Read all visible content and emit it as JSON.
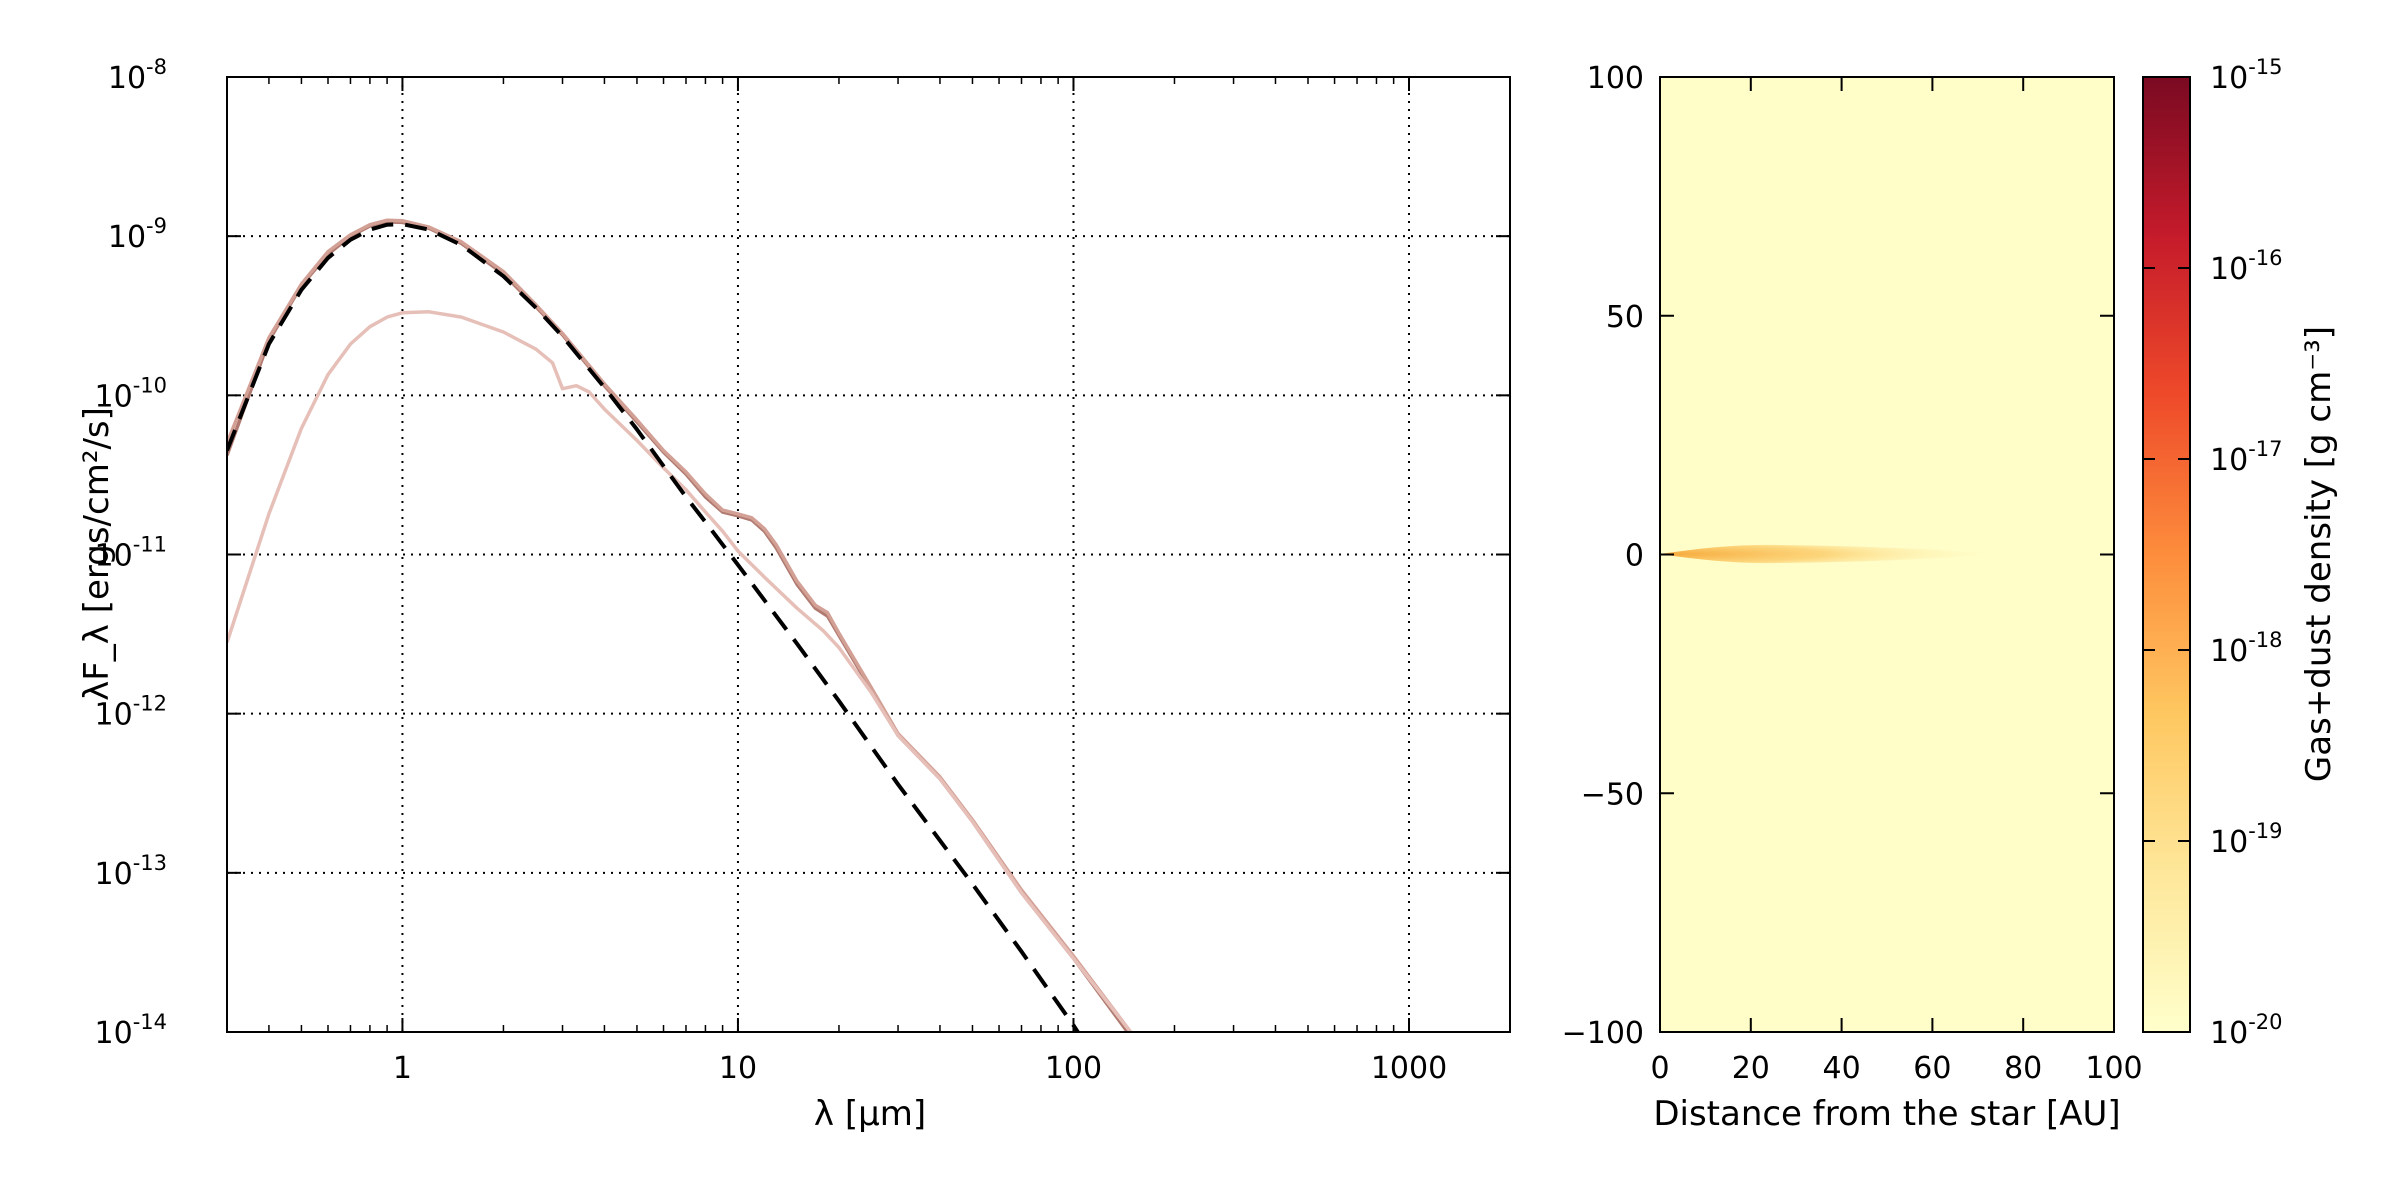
{
  "chart_data": [
    {
      "type": "line",
      "xlabel": "λ [μm]",
      "ylabel": "λF_λ [ergs/cm²/s]",
      "xscale": "log",
      "yscale": "log",
      "xlim": [
        0.3,
        2000
      ],
      "ylim": [
        1e-14,
        1e-08
      ],
      "grid": true,
      "x_tick_labels": [
        "1",
        "10",
        "100",
        "1000"
      ],
      "y_tick_labels": [
        {
          "base": "10",
          "exp": "-14"
        },
        {
          "base": "10",
          "exp": "-13"
        },
        {
          "base": "10",
          "exp": "-12"
        },
        {
          "base": "10",
          "exp": "-11"
        },
        {
          "base": "10",
          "exp": "-10"
        },
        {
          "base": "10",
          "exp": "-9"
        },
        {
          "base": "10",
          "exp": "-8"
        }
      ],
      "series": [
        {
          "style": "solid",
          "color": "#b07a70",
          "points": [
            [
              0.3,
              4.2e-11
            ],
            [
              0.4,
              2.2e-10
            ],
            [
              0.5,
              4.9e-10
            ],
            [
              0.6,
              7.7e-10
            ],
            [
              0.7,
              1e-09
            ],
            [
              0.8,
              1.16e-09
            ],
            [
              0.9,
              1.23e-09
            ],
            [
              1.0,
              1.22e-09
            ],
            [
              1.2,
              1.12e-09
            ],
            [
              1.5,
              9e-10
            ],
            [
              2.0,
              5.8e-10
            ],
            [
              2.5,
              3.6e-10
            ],
            [
              3.0,
              2.4e-10
            ],
            [
              4.0,
              1.15e-10
            ],
            [
              5.0,
              6.8e-11
            ],
            [
              6.0,
              4.4e-11
            ],
            [
              7.0,
              3.2e-11
            ],
            [
              8.0,
              2.3e-11
            ],
            [
              9.0,
              1.85e-11
            ],
            [
              10.0,
              1.75e-11
            ],
            [
              11.0,
              1.65e-11
            ],
            [
              12.0,
              1.4e-11
            ],
            [
              13.0,
              1.1e-11
            ],
            [
              15.0,
              6.5e-12
            ],
            [
              17.0,
              4.6e-12
            ],
            [
              18.5,
              4.1e-12
            ],
            [
              20.0,
              3.1e-12
            ],
            [
              25.0,
              1.4e-12
            ],
            [
              30.0,
              7.3e-13
            ],
            [
              40.0,
              3.9e-13
            ],
            [
              50.0,
              2.1e-13
            ],
            [
              70.0,
              7.5e-14
            ],
            [
              100.0,
              2.9e-14
            ],
            [
              145.0,
              1e-14
            ]
          ]
        },
        {
          "style": "solid",
          "color": "#d3a096",
          "points": [
            [
              0.3,
              5e-11
            ],
            [
              0.4,
              2.3e-10
            ],
            [
              0.5,
              5e-10
            ],
            [
              0.6,
              8e-10
            ],
            [
              0.7,
              1.02e-09
            ],
            [
              0.8,
              1.18e-09
            ],
            [
              0.9,
              1.26e-09
            ],
            [
              1.0,
              1.25e-09
            ],
            [
              1.2,
              1.14e-09
            ],
            [
              1.5,
              9.2e-10
            ],
            [
              2.0,
              6e-10
            ],
            [
              2.5,
              3.7e-10
            ],
            [
              3.0,
              2.45e-10
            ],
            [
              4.0,
              1.18e-10
            ],
            [
              5.0,
              7e-11
            ],
            [
              6.0,
              4.5e-11
            ],
            [
              7.0,
              3.3e-11
            ],
            [
              8.0,
              2.4e-11
            ],
            [
              9.0,
              1.9e-11
            ],
            [
              10.0,
              1.8e-11
            ],
            [
              11.0,
              1.7e-11
            ],
            [
              12.0,
              1.45e-11
            ],
            [
              13.0,
              1.15e-11
            ],
            [
              15.0,
              6.8e-12
            ],
            [
              17.0,
              4.8e-12
            ],
            [
              18.5,
              4.3e-12
            ],
            [
              20.0,
              3.2e-12
            ],
            [
              25.0,
              1.45e-12
            ],
            [
              30.0,
              7.5e-13
            ],
            [
              40.0,
              4e-13
            ],
            [
              50.0,
              2.15e-13
            ],
            [
              70.0,
              7.8e-14
            ],
            [
              100.0,
              3e-14
            ],
            [
              148.0,
              1e-14
            ]
          ]
        },
        {
          "style": "solid",
          "color": "#e6c0b8",
          "points": [
            [
              0.3,
              2.8e-12
            ],
            [
              0.4,
              1.8e-11
            ],
            [
              0.5,
              6.2e-11
            ],
            [
              0.6,
              1.35e-10
            ],
            [
              0.7,
              2.1e-10
            ],
            [
              0.8,
              2.7e-10
            ],
            [
              0.9,
              3.1e-10
            ],
            [
              1.0,
              3.3e-10
            ],
            [
              1.2,
              3.35e-10
            ],
            [
              1.5,
              3.1e-10
            ],
            [
              2.0,
              2.5e-10
            ],
            [
              2.5,
              1.95e-10
            ],
            [
              2.8,
              1.6e-10
            ],
            [
              3.0,
              1.1e-10
            ],
            [
              3.3,
              1.15e-10
            ],
            [
              3.6,
              1.05e-10
            ],
            [
              4.0,
              8.2e-11
            ],
            [
              5.0,
              5.2e-11
            ],
            [
              6.0,
              3.5e-11
            ],
            [
              7.0,
              2.55e-11
            ],
            [
              8.0,
              1.85e-11
            ],
            [
              9.0,
              1.4e-11
            ],
            [
              10.0,
              1.05e-11
            ],
            [
              12.0,
              7.2e-12
            ],
            [
              15.0,
              4.6e-12
            ],
            [
              18.0,
              3.3e-12
            ],
            [
              20.0,
              2.6e-12
            ],
            [
              25.0,
              1.35e-12
            ],
            [
              30.0,
              7.3e-13
            ],
            [
              40.0,
              3.9e-13
            ],
            [
              50.0,
              2.1e-13
            ],
            [
              70.0,
              7.5e-14
            ],
            [
              100.0,
              2.9e-14
            ],
            [
              148.0,
              1e-14
            ]
          ]
        },
        {
          "style": "dashed",
          "color": "#000000",
          "points": [
            [
              0.3,
              4.5e-11
            ],
            [
              0.4,
              2.1e-10
            ],
            [
              0.5,
              4.6e-10
            ],
            [
              0.6,
              7.3e-10
            ],
            [
              0.7,
              9.5e-10
            ],
            [
              0.8,
              1.1e-09
            ],
            [
              0.9,
              1.18e-09
            ],
            [
              1.0,
              1.19e-09
            ],
            [
              1.2,
              1.1e-09
            ],
            [
              1.5,
              8.8e-10
            ],
            [
              2.0,
              5.6e-10
            ],
            [
              2.5,
              3.55e-10
            ],
            [
              3.0,
              2.35e-10
            ],
            [
              4.0,
              1.12e-10
            ],
            [
              5.0,
              6.1e-11
            ],
            [
              6.0,
              3.6e-11
            ],
            [
              7.0,
              2.3e-11
            ],
            [
              8.0,
              1.6e-11
            ],
            [
              10.0,
              8.6e-12
            ],
            [
              15.0,
              2.75e-12
            ],
            [
              20.0,
              1.2e-12
            ],
            [
              30.0,
              3.6e-13
            ],
            [
              50.0,
              8.5e-14
            ],
            [
              70.0,
              3.2e-14
            ],
            [
              100.0,
              1.1e-14
            ],
            [
              105.0,
              9.4e-15
            ]
          ]
        }
      ]
    },
    {
      "type": "heatmap",
      "xlabel": "Distance from the star [AU]",
      "ylabel": "",
      "xlim": [
        0,
        100
      ],
      "ylim": [
        -100,
        100
      ],
      "x_ticks": [
        0,
        20,
        40,
        60,
        80,
        100
      ],
      "y_ticks": [
        100,
        50,
        0,
        -50,
        -100
      ],
      "x_tick_labels": [
        "0",
        "20",
        "40",
        "60",
        "80",
        "100"
      ],
      "y_tick_labels": [
        "100",
        "50",
        "0",
        "−50",
        "−100"
      ],
      "background_color": "#fffdc8",
      "feature": {
        "description_color": "#fbbf55",
        "x_extent": [
          0,
          70
        ],
        "y_center": 0
      },
      "colorbar": {
        "label": "Gas+dust density [g cm⁻³]",
        "scale": "log",
        "range": [
          1e-20,
          1e-15
        ],
        "tick_labels": [
          {
            "base": "10",
            "exp": "-15"
          },
          {
            "base": "10",
            "exp": "-16"
          },
          {
            "base": "10",
            "exp": "-17"
          },
          {
            "base": "10",
            "exp": "-18"
          },
          {
            "base": "10",
            "exp": "-19"
          },
          {
            "base": "10",
            "exp": "-20"
          }
        ],
        "colormap": [
          "#7a0a22",
          "#c51b2b",
          "#ee4a2a",
          "#fd8d3c",
          "#fec760",
          "#fee79a",
          "#ffffcc"
        ]
      }
    }
  ]
}
